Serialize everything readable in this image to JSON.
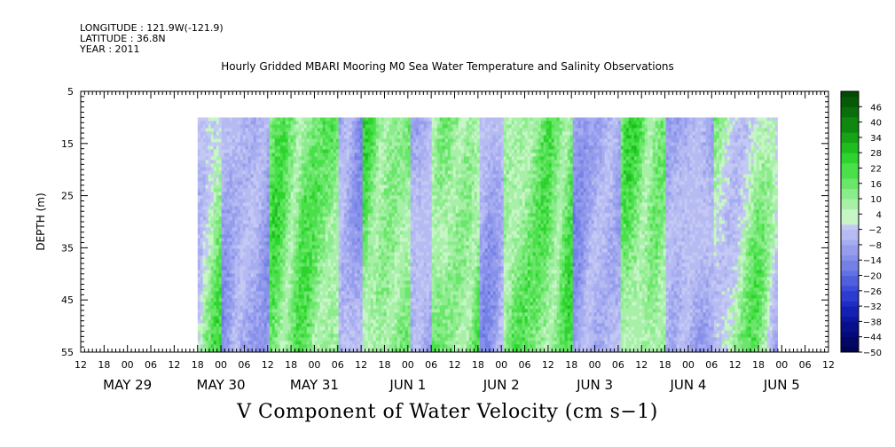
{
  "header": {
    "longitude": "LONGITUDE : 121.9W(-121.9)",
    "latitude": "LATITUDE : 36.8N",
    "year": "YEAR : 2011",
    "title": "Hourly Gridded MBARI Mooring M0 Sea Water Temperature and Salinity Observations"
  },
  "chart_data": {
    "type": "heatmap",
    "title": "V Component of Water Velocity (cm s−1)",
    "ylabel": "DEPTH (m)",
    "y_ticks": [
      "5",
      "15",
      "25",
      "35",
      "45",
      "55"
    ],
    "ylim": [
      5,
      55
    ],
    "y_inverted": true,
    "x_hour_ticks": [
      "12",
      "18",
      "00",
      "06",
      "12",
      "18",
      "00",
      "06",
      "12",
      "18",
      "00",
      "06",
      "12",
      "18",
      "00",
      "06",
      "12",
      "18",
      "00",
      "06",
      "12",
      "18",
      "00",
      "06",
      "12",
      "18",
      "00",
      "06",
      "12",
      "18",
      "00",
      "06",
      "12"
    ],
    "x_day_labels": [
      "MAY 29",
      "MAY 30",
      "MAY 31",
      "JUN  1",
      "JUN  2",
      "JUN  3",
      "JUN  4",
      "JUN  5"
    ],
    "x_range": [
      "MAY 28 12:00",
      "JUN 5 12:00"
    ],
    "data_extent": {
      "x_start": "MAY 29 18:00",
      "x_end": "JUN 4 23:00",
      "depth_min": 10,
      "depth_max": 55
    },
    "colorbar_labels": [
      "46",
      "40",
      "34",
      "28",
      "22",
      "16",
      "10",
      "4",
      "−2",
      "−8",
      "−14",
      "−20",
      "−26",
      "−32",
      "−38",
      "−44",
      "−50"
    ],
    "colorbar_range": [
      -50,
      52
    ],
    "colors": {
      "positive": [
        "#c6f5c6",
        "#a8f0a8",
        "#8aec8a",
        "#6ae66a",
        "#4ae04a",
        "#2ed42e",
        "#20bd20",
        "#16a316",
        "#0f880f",
        "#0a6f0a",
        "#065a06",
        "#034a03"
      ],
      "negative": [
        "#c4c8f4",
        "#b6bbf2",
        "#a6acf0",
        "#969ded",
        "#8690ea",
        "#7480e6",
        "#6272e2",
        "#505fde",
        "#3d4cd8",
        "#2c3bd0",
        "#1e2dc4",
        "#1420b4",
        "#0c16a0",
        "#070f8c",
        "#040a78",
        "#020664",
        "#01044e"
      ]
    },
    "field_description_bands": [
      {
        "from": "MAY 29 18:00",
        "to": "MAY 30 00:00",
        "sign": "mixed"
      },
      {
        "from": "MAY 30 00:00",
        "to": "MAY 30 12:00",
        "sign": "negative"
      },
      {
        "from": "MAY 30 12:00",
        "to": "MAY 31 06:00",
        "sign": "positive"
      },
      {
        "from": "MAY 31 06:00",
        "to": "MAY 31 12:00",
        "sign": "negative"
      },
      {
        "from": "MAY 31 12:00",
        "to": "JUN 1 00:00",
        "sign": "positive"
      },
      {
        "from": "JUN 1 00:00",
        "to": "JUN 1 06:00",
        "sign": "negative"
      },
      {
        "from": "JUN 1 06:00",
        "to": "JUN 1 18:00",
        "sign": "positive"
      },
      {
        "from": "JUN 1 18:00",
        "to": "JUN 2 00:00",
        "sign": "negative"
      },
      {
        "from": "JUN 2 00:00",
        "to": "JUN 2 18:00",
        "sign": "positive"
      },
      {
        "from": "JUN 2 18:00",
        "to": "JUN 3 06:00",
        "sign": "negative"
      },
      {
        "from": "JUN 3 06:00",
        "to": "JUN 3 18:00",
        "sign": "positive"
      },
      {
        "from": "JUN 3 18:00",
        "to": "JUN 4 06:00",
        "sign": "negative"
      },
      {
        "from": "JUN 4 06:00",
        "to": "JUN 4 23:00",
        "sign": "mixed"
      }
    ]
  }
}
